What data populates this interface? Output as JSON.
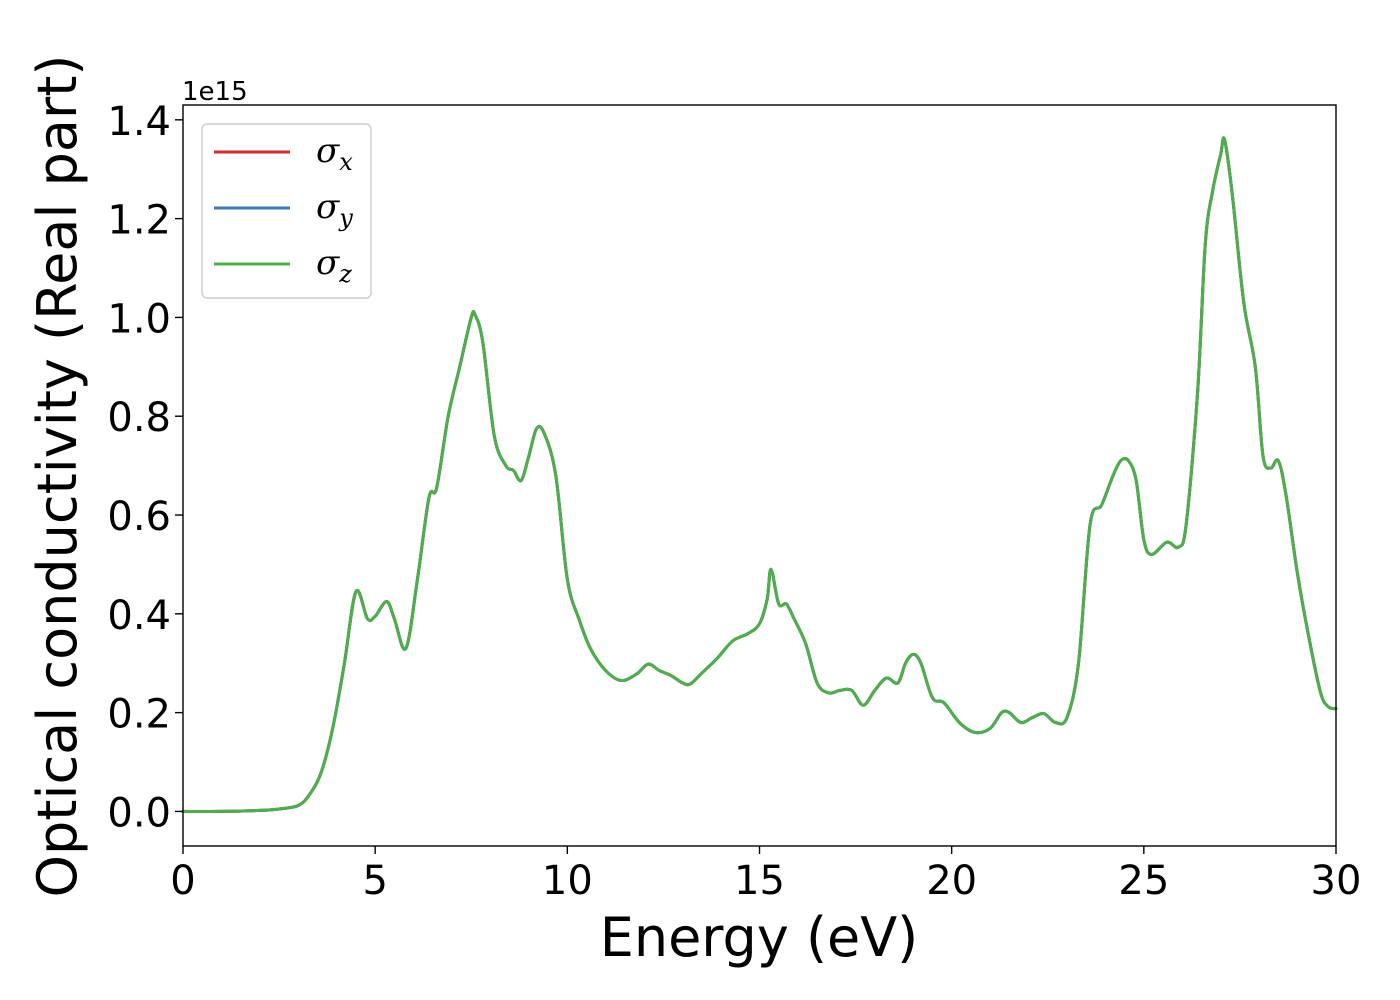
{
  "chart_data": {
    "type": "line",
    "title": "",
    "xlabel": "Energy (eV)",
    "ylabel": "Optical conductivity (Real part)",
    "y_offset_label": "1e15",
    "xlim": [
      0,
      30
    ],
    "ylim": [
      -0.07,
      1.43
    ],
    "xticks": [
      0,
      5,
      10,
      15,
      20,
      25,
      30
    ],
    "xtick_labels": [
      "0",
      "5",
      "10",
      "15",
      "20",
      "25",
      "30"
    ],
    "yticks": [
      0.0,
      0.2,
      0.4,
      0.6,
      0.8,
      1.0,
      1.2,
      1.4
    ],
    "ytick_labels": [
      "0.0",
      "0.2",
      "0.4",
      "0.6",
      "0.8",
      "1.0",
      "1.2",
      "1.4"
    ],
    "grid": false,
    "legend_position": "top-left",
    "x": [
      0,
      1,
      2,
      2.5,
      3,
      3.3,
      3.6,
      3.9,
      4.2,
      4.5,
      4.8,
      5.0,
      5.3,
      5.5,
      5.8,
      6.1,
      6.4,
      6.6,
      6.9,
      7.2,
      7.5,
      7.6,
      7.8,
      8.1,
      8.4,
      8.6,
      8.8,
      9.0,
      9.2,
      9.4,
      9.7,
      10.0,
      10.3,
      10.6,
      11.0,
      11.4,
      11.8,
      12.1,
      12.4,
      12.7,
      13.0,
      13.2,
      13.5,
      13.9,
      14.3,
      14.7,
      15.0,
      15.2,
      15.3,
      15.5,
      15.7,
      15.9,
      16.2,
      16.5,
      16.8,
      17.1,
      17.4,
      17.7,
      18.0,
      18.3,
      18.6,
      18.8,
      19.0,
      19.2,
      19.5,
      19.8,
      20.2,
      20.6,
      21.0,
      21.3,
      21.5,
      21.8,
      22.1,
      22.4,
      22.7,
      23.0,
      23.3,
      23.6,
      23.9,
      24.2,
      24.4,
      24.6,
      24.8,
      25.0,
      25.2,
      25.6,
      25.9,
      26.1,
      26.4,
      26.6,
      26.8,
      27.0,
      27.1,
      27.3,
      27.6,
      27.9,
      28.1,
      28.3,
      28.5,
      28.7,
      29.0,
      29.3,
      29.6,
      29.8,
      30.0
    ],
    "series": [
      {
        "name": "σx",
        "color": "#d62728",
        "values": [
          0.0,
          0.0,
          0.002,
          0.005,
          0.012,
          0.035,
          0.08,
          0.17,
          0.3,
          0.445,
          0.39,
          0.395,
          0.425,
          0.39,
          0.33,
          0.47,
          0.635,
          0.655,
          0.8,
          0.9,
          1.0,
          1.005,
          0.95,
          0.76,
          0.7,
          0.69,
          0.67,
          0.72,
          0.775,
          0.765,
          0.68,
          0.47,
          0.39,
          0.33,
          0.285,
          0.265,
          0.278,
          0.298,
          0.285,
          0.275,
          0.26,
          0.258,
          0.28,
          0.31,
          0.345,
          0.36,
          0.38,
          0.43,
          0.49,
          0.42,
          0.42,
          0.39,
          0.34,
          0.26,
          0.24,
          0.245,
          0.245,
          0.215,
          0.245,
          0.27,
          0.26,
          0.3,
          0.318,
          0.3,
          0.23,
          0.22,
          0.18,
          0.16,
          0.168,
          0.2,
          0.2,
          0.18,
          0.19,
          0.198,
          0.18,
          0.19,
          0.3,
          0.58,
          0.62,
          0.68,
          0.71,
          0.71,
          0.67,
          0.55,
          0.52,
          0.545,
          0.535,
          0.58,
          0.85,
          1.15,
          1.26,
          1.33,
          1.36,
          1.25,
          1.03,
          0.9,
          0.72,
          0.695,
          0.71,
          0.64,
          0.48,
          0.35,
          0.24,
          0.212,
          0.208
        ]
      },
      {
        "name": "σy",
        "color": "#3a79b8",
        "values": [
          0.0,
          0.0,
          0.002,
          0.005,
          0.012,
          0.035,
          0.08,
          0.17,
          0.3,
          0.445,
          0.39,
          0.395,
          0.425,
          0.39,
          0.33,
          0.47,
          0.635,
          0.655,
          0.8,
          0.9,
          1.0,
          1.005,
          0.95,
          0.76,
          0.7,
          0.69,
          0.67,
          0.72,
          0.775,
          0.765,
          0.68,
          0.47,
          0.39,
          0.33,
          0.285,
          0.265,
          0.278,
          0.298,
          0.285,
          0.275,
          0.26,
          0.258,
          0.28,
          0.31,
          0.345,
          0.36,
          0.38,
          0.43,
          0.49,
          0.42,
          0.42,
          0.39,
          0.34,
          0.26,
          0.24,
          0.245,
          0.245,
          0.215,
          0.245,
          0.27,
          0.26,
          0.3,
          0.318,
          0.3,
          0.23,
          0.22,
          0.18,
          0.16,
          0.168,
          0.2,
          0.2,
          0.18,
          0.19,
          0.198,
          0.18,
          0.19,
          0.3,
          0.58,
          0.62,
          0.68,
          0.71,
          0.71,
          0.67,
          0.55,
          0.52,
          0.545,
          0.535,
          0.58,
          0.85,
          1.15,
          1.26,
          1.33,
          1.36,
          1.25,
          1.03,
          0.9,
          0.72,
          0.695,
          0.71,
          0.64,
          0.48,
          0.35,
          0.24,
          0.212,
          0.208
        ]
      },
      {
        "name": "σz",
        "color": "#4daf4a",
        "values": [
          0.0,
          0.0,
          0.002,
          0.005,
          0.012,
          0.035,
          0.08,
          0.17,
          0.3,
          0.445,
          0.39,
          0.395,
          0.425,
          0.39,
          0.33,
          0.47,
          0.635,
          0.655,
          0.8,
          0.9,
          1.0,
          1.005,
          0.95,
          0.76,
          0.7,
          0.69,
          0.67,
          0.72,
          0.775,
          0.765,
          0.68,
          0.47,
          0.39,
          0.33,
          0.285,
          0.265,
          0.278,
          0.298,
          0.285,
          0.275,
          0.26,
          0.258,
          0.28,
          0.31,
          0.345,
          0.36,
          0.38,
          0.43,
          0.49,
          0.42,
          0.42,
          0.39,
          0.34,
          0.26,
          0.24,
          0.245,
          0.245,
          0.215,
          0.245,
          0.27,
          0.26,
          0.3,
          0.318,
          0.3,
          0.23,
          0.22,
          0.18,
          0.16,
          0.168,
          0.2,
          0.2,
          0.18,
          0.19,
          0.198,
          0.18,
          0.19,
          0.3,
          0.58,
          0.62,
          0.68,
          0.71,
          0.71,
          0.67,
          0.55,
          0.52,
          0.545,
          0.535,
          0.58,
          0.85,
          1.15,
          1.26,
          1.33,
          1.36,
          1.25,
          1.03,
          0.9,
          0.72,
          0.695,
          0.71,
          0.64,
          0.48,
          0.35,
          0.24,
          0.212,
          0.208
        ]
      }
    ],
    "legend": [
      {
        "symbol": "σ",
        "subscript": "x",
        "color": "#d62728"
      },
      {
        "symbol": "σ",
        "subscript": "y",
        "color": "#3a79b8"
      },
      {
        "symbol": "σ",
        "subscript": "z",
        "color": "#4daf4a"
      }
    ]
  }
}
